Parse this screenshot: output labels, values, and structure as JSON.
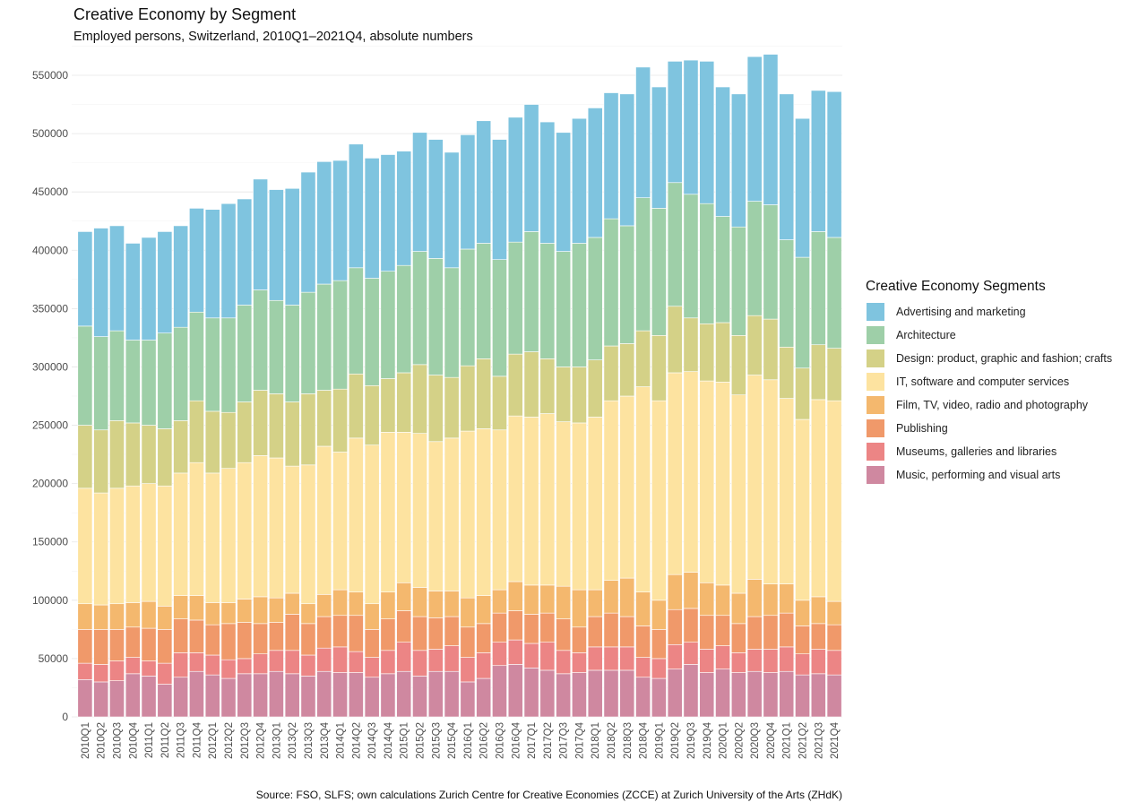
{
  "chart_data": {
    "type": "bar",
    "stacked": true,
    "title": "Creative Economy by Segment",
    "subtitle": "Employed persons, Switzerland, 2010Q1–2021Q4, absolute numbers",
    "xlabel": "",
    "ylabel": "",
    "ylim": [
      0,
      575000
    ],
    "yticks": [
      0,
      50000,
      100000,
      150000,
      200000,
      250000,
      300000,
      350000,
      400000,
      450000,
      500000,
      550000
    ],
    "grid": true,
    "legend_title": "Creative Economy Segments",
    "legend_position": "right",
    "source": "Source: FSO, SLFS; own calculations Zurich Centre for Creative Economies (ZCCE) at Zurich University of the Arts (ZHdK)",
    "categories": [
      "2010Q1",
      "2010Q2",
      "2010Q3",
      "2010Q4",
      "2011Q1",
      "2011Q2",
      "2011Q3",
      "2011Q4",
      "2012Q1",
      "2012Q2",
      "2012Q3",
      "2012Q4",
      "2013Q1",
      "2013Q2",
      "2013Q3",
      "2013Q4",
      "2014Q1",
      "2014Q2",
      "2014Q3",
      "2014Q4",
      "2015Q1",
      "2015Q2",
      "2015Q3",
      "2015Q4",
      "2016Q1",
      "2016Q2",
      "2016Q3",
      "2016Q4",
      "2017Q1",
      "2017Q2",
      "2017Q3",
      "2017Q4",
      "2018Q1",
      "2018Q2",
      "2018Q3",
      "2018Q4",
      "2019Q1",
      "2019Q2",
      "2019Q3",
      "2019Q4",
      "2020Q1",
      "2020Q2",
      "2020Q3",
      "2020Q4",
      "2021Q1",
      "2021Q2",
      "2021Q3",
      "2021Q4"
    ],
    "series": [
      {
        "name": "Music, performing and visual arts",
        "color": "#cf88a0",
        "values": [
          32000,
          30000,
          31000,
          37000,
          35000,
          28000,
          34000,
          39000,
          36000,
          33000,
          37000,
          37000,
          39000,
          37000,
          35000,
          39000,
          38000,
          38000,
          34000,
          37000,
          39000,
          35000,
          39000,
          39000,
          30000,
          33000,
          44000,
          45000,
          42000,
          40000,
          37000,
          38000,
          40000,
          40000,
          40000,
          34000,
          33000,
          41000,
          45000,
          38000,
          41000,
          38000,
          39000,
          38000,
          39000,
          36000,
          37000,
          36000
        ]
      },
      {
        "name": "Museums, galleries and libraries",
        "color": "#ec8585",
        "values": [
          14000,
          15000,
          17000,
          14000,
          13000,
          18000,
          21000,
          16000,
          17000,
          16000,
          13000,
          17000,
          18000,
          20000,
          18000,
          20000,
          22000,
          18000,
          17000,
          20000,
          25000,
          22000,
          19000,
          22000,
          21000,
          22000,
          20000,
          21000,
          21000,
          24000,
          20000,
          17000,
          20000,
          20000,
          20000,
          17000,
          17000,
          21000,
          19000,
          20000,
          20000,
          17000,
          19000,
          20000,
          21000,
          18000,
          21000,
          21000
        ]
      },
      {
        "name": "Publishing",
        "color": "#f0996a",
        "values": [
          29000,
          30000,
          27000,
          26000,
          28000,
          29000,
          29000,
          28000,
          26000,
          31000,
          31000,
          26000,
          24000,
          31000,
          27000,
          27000,
          27000,
          31000,
          24000,
          27000,
          27000,
          29000,
          27000,
          25000,
          26000,
          25000,
          25000,
          25000,
          25000,
          25000,
          27000,
          22000,
          26000,
          29000,
          26000,
          27000,
          25000,
          30000,
          29000,
          29000,
          26000,
          25000,
          28000,
          29000,
          29000,
          24000,
          22000,
          22000
        ]
      },
      {
        "name": "Film, TV, video, radio and photography",
        "color": "#f4b86e",
        "values": [
          22000,
          21000,
          22000,
          21000,
          23000,
          20000,
          20000,
          21000,
          19000,
          18000,
          20000,
          23000,
          21000,
          18000,
          17000,
          19000,
          22000,
          20000,
          22000,
          23000,
          24000,
          25000,
          23000,
          22000,
          25000,
          24000,
          20000,
          25000,
          25000,
          24000,
          28000,
          32000,
          23000,
          28000,
          33000,
          29000,
          25000,
          30000,
          31000,
          28000,
          26000,
          26000,
          32000,
          27000,
          25000,
          22000,
          23000,
          20000
        ]
      },
      {
        "name": "IT, software and computer services",
        "color": "#fde3a0",
        "values": [
          99000,
          96000,
          99000,
          100000,
          101000,
          103000,
          105000,
          114000,
          111000,
          115000,
          117000,
          121000,
          120000,
          109000,
          119000,
          127000,
          118000,
          132000,
          136000,
          137000,
          129000,
          132000,
          128000,
          131000,
          143000,
          143000,
          137000,
          142000,
          144000,
          147000,
          141000,
          143000,
          148000,
          154000,
          156000,
          176000,
          171000,
          173000,
          172000,
          173000,
          174000,
          170000,
          175000,
          175000,
          159000,
          155000,
          169000,
          172000
        ]
      },
      {
        "name": "Design: product, graphic and fashion; crafts",
        "color": "#d4d187",
        "values": [
          54000,
          54000,
          58000,
          54000,
          50000,
          49000,
          45000,
          53000,
          53000,
          48000,
          52000,
          56000,
          55000,
          55000,
          61000,
          48000,
          54000,
          55000,
          51000,
          46000,
          51000,
          59000,
          57000,
          52000,
          56000,
          60000,
          46000,
          53000,
          56000,
          47000,
          47000,
          48000,
          49000,
          47000,
          45000,
          48000,
          56000,
          57000,
          46000,
          49000,
          51000,
          51000,
          51000,
          52000,
          44000,
          44000,
          47000,
          45000
        ]
      },
      {
        "name": "Architecture",
        "color": "#9ecfa8",
        "values": [
          85000,
          80000,
          77000,
          71000,
          73000,
          82000,
          80000,
          76000,
          80000,
          81000,
          83000,
          86000,
          80000,
          83000,
          87000,
          91000,
          93000,
          91000,
          92000,
          92000,
          92000,
          97000,
          100000,
          94000,
          100000,
          99000,
          100000,
          96000,
          103000,
          99000,
          99000,
          106000,
          105000,
          109000,
          101000,
          114000,
          109000,
          106000,
          106000,
          103000,
          91000,
          93000,
          98000,
          98000,
          92000,
          95000,
          97000,
          95000
        ]
      },
      {
        "name": "Advertising and marketing",
        "color": "#7fc4df",
        "values": [
          81000,
          93000,
          90000,
          83000,
          88000,
          87000,
          87000,
          89000,
          93000,
          98000,
          91000,
          95000,
          95000,
          100000,
          103000,
          105000,
          103000,
          106000,
          103000,
          100000,
          98000,
          102000,
          102000,
          99000,
          98000,
          105000,
          103000,
          107000,
          109000,
          104000,
          102000,
          107000,
          111000,
          108000,
          113000,
          112000,
          104000,
          104000,
          115000,
          122000,
          111000,
          114000,
          124000,
          129000,
          125000,
          119000,
          121000,
          125000
        ]
      }
    ]
  }
}
